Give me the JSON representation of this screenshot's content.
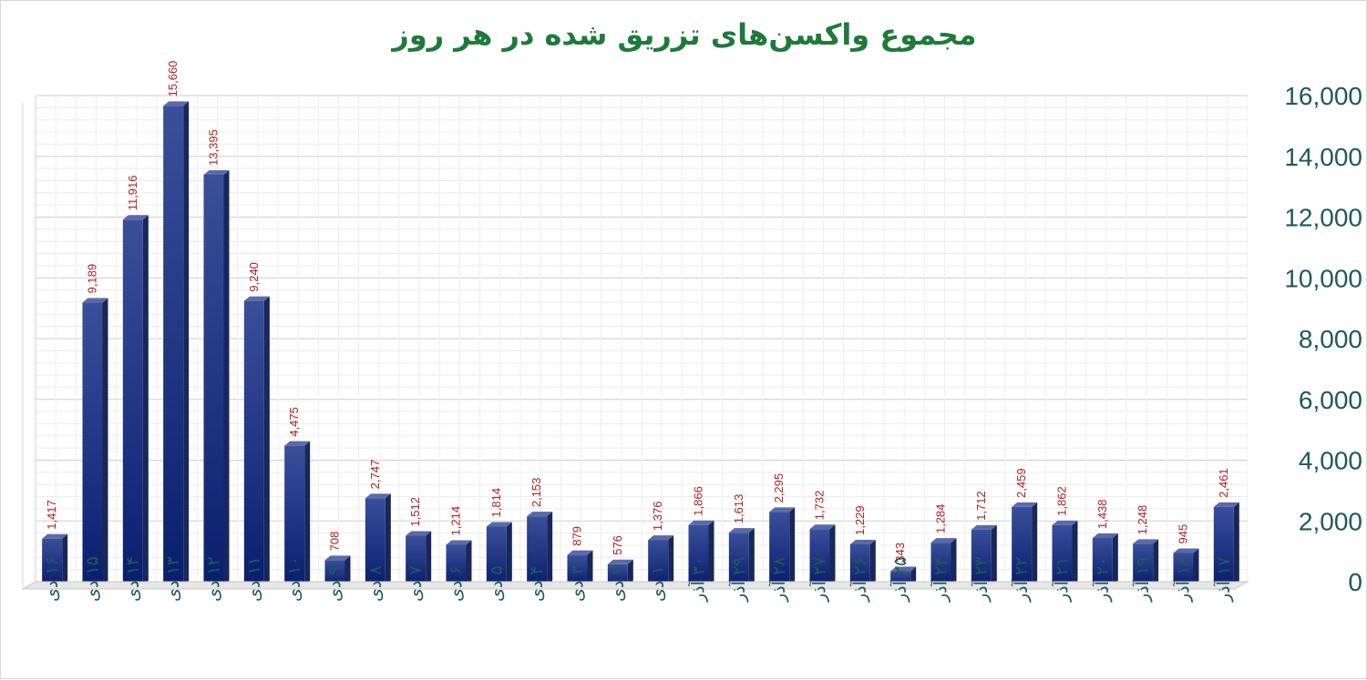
{
  "chart_data": {
    "type": "bar",
    "title": "مجموع واکسن‌های تزریق شده در هر روز",
    "xlabel": "",
    "ylabel": "",
    "ylim": [
      0,
      16000
    ],
    "yticks": [
      0,
      2000,
      4000,
      6000,
      8000,
      10000,
      12000,
      14000,
      16000
    ],
    "ytick_labels": [
      "0",
      "2,000",
      "4,000",
      "6,000",
      "8,000",
      "10,000",
      "12,000",
      "14,000",
      "16,000"
    ],
    "grid": true,
    "y_axis_position": "right",
    "categories": [
      "۱۶ دی",
      "۱۵ دی",
      "۱۴ دی",
      "۱۳ دی",
      "۱۲ دی",
      "۱۱ دی",
      "۱۰ دی",
      "۹ دی",
      "۸ دی",
      "۷ دی",
      "۶ دی",
      "۵ دی",
      "۴ دی",
      "۳ دی",
      "۲ دی",
      "۱ دی",
      "۳۰ آذر",
      "۲۹ آذر",
      "۲۸ آذر",
      "۲۷ آذر",
      "۲۶ آذر",
      "۲۵ آذر",
      "۲۴ آذر",
      "۲۳ آذر",
      "۲۲ آذر",
      "۲۱ آذر",
      "۲۰ آذر",
      "۱۹ آذر",
      "۱۸ آذر",
      "۱۷ آذر"
    ],
    "values": [
      1417,
      9189,
      11916,
      15660,
      13395,
      9240,
      4475,
      708,
      2747,
      1512,
      1214,
      1814,
      2153,
      879,
      576,
      1376,
      1866,
      1613,
      2295,
      1732,
      1229,
      343,
      1284,
      1712,
      2459,
      1862,
      1438,
      1248,
      945,
      2461
    ],
    "value_labels": [
      "1,417",
      "9,189",
      "11,916",
      "15,660",
      "13,395",
      "9,240",
      "4,475",
      "708",
      "2,747",
      "1,512",
      "1,214",
      "1,814",
      "2,153",
      "879",
      "576",
      "1,376",
      "1,866",
      "1,613",
      "2,295",
      "1,732",
      "1,229",
      "343",
      "1,284",
      "1,712",
      "2,459",
      "1,862",
      "1,438",
      "1,248",
      "945",
      "2,461"
    ],
    "colors": {
      "title": "#1f7a3a",
      "bar_front_top": "#3a4f9a",
      "bar_front_bottom": "#0a1e6e",
      "bar_side": "#1a2a5a",
      "bar_top": "#5a6aa8",
      "value_label": "#b22222",
      "axis_text": "#1d5a5a",
      "grid": "#e2e2e2"
    }
  }
}
